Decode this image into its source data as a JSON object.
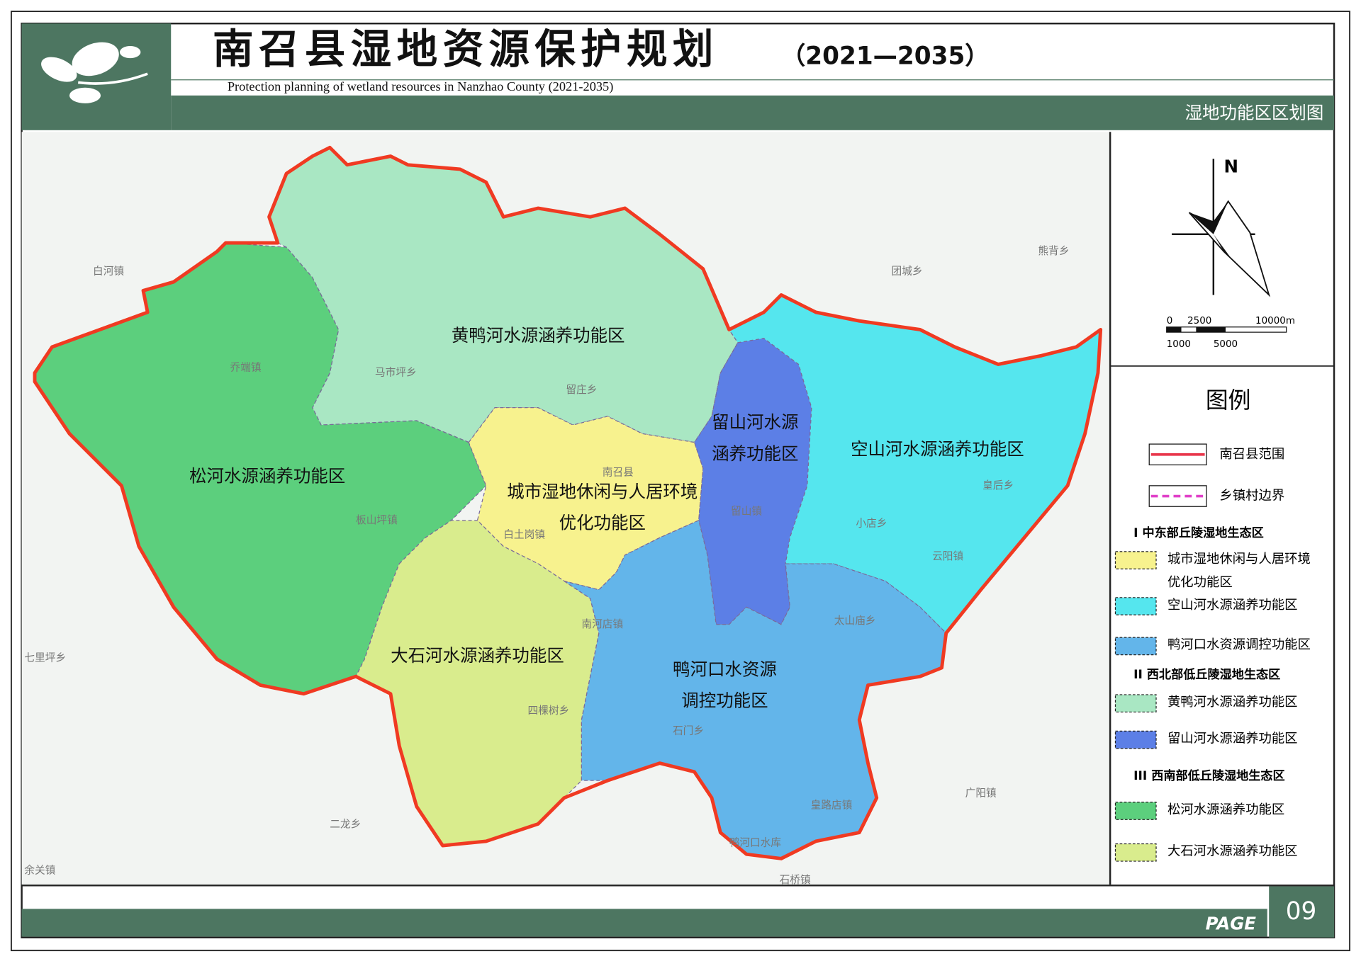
{
  "header": {
    "title": "南召县湿地资源保护规划",
    "years": "（2021—2035）",
    "subtitle": "Protection planning of wetland resources in Nanzhao County (2021-2035)",
    "section": "湿地功能区区划图"
  },
  "map": {
    "boundary_color": "#f03a22",
    "regions": [
      {
        "label": [
          "黄鸭河水源涵养功能区"
        ],
        "color": "#a9e7c3"
      },
      {
        "label": [
          "松河水源涵养功能区"
        ],
        "color": "#5ccf7d"
      },
      {
        "label": [
          "城市湿地休闲与人居环境",
          "优化功能区"
        ],
        "color": "#f7f28e"
      },
      {
        "label": [
          "留山河水源",
          "涵养功能区"
        ],
        "color": "#5c7fe6"
      },
      {
        "label": [
          "空山河水源涵养功能区"
        ],
        "color": "#55e6ee"
      },
      {
        "label": [
          "大石河水源涵养功能区"
        ],
        "color": "#d9ec8d"
      },
      {
        "label": [
          "鸭河口水资源",
          "调控功能区"
        ],
        "color": "#63b5ea"
      }
    ],
    "places": [
      "白河镇",
      "乔端镇",
      "马市坪乡",
      "留庄乡",
      "南召县",
      "板山坪镇",
      "白土岗镇",
      "留山镇",
      "小店乡",
      "云阳镇",
      "皇后乡",
      "熊背乡",
      "团城乡",
      "太山庙乡",
      "南河店镇",
      "四棵树乡",
      "石门乡",
      "皇路店镇",
      "七里坪乡",
      "二龙乡",
      "余关镇",
      "石桥镇",
      "广阳镇",
      "鸭河口水库"
    ]
  },
  "legend": {
    "north": "N",
    "scale_top": [
      "0",
      "2500",
      "10000m"
    ],
    "scale_bottom": [
      "1000",
      "5000"
    ],
    "title": "图例",
    "lines": [
      {
        "text": "南召县范围",
        "color": "#e8354a",
        "dash": false
      },
      {
        "text": "乡镇村边界",
        "color": "#e040c8",
        "dash": true
      }
    ],
    "groups": [
      {
        "title": "Ⅰ 中东部丘陵湿地生态区",
        "items": [
          {
            "text": [
              "城市湿地休闲与人居环境",
              "优化功能区"
            ],
            "color": "#f7f28e"
          },
          {
            "text": [
              "空山河水源涵养功能区"
            ],
            "color": "#55e6ee"
          },
          {
            "text": [
              "鸭河口水资源调控功能区"
            ],
            "color": "#63b5ea"
          }
        ]
      },
      {
        "title": "II 西北部低丘陵湿地生态区",
        "items": [
          {
            "text": [
              "黄鸭河水源涵养功能区"
            ],
            "color": "#a9e7c3"
          },
          {
            "text": [
              "留山河水源涵养功能区"
            ],
            "color": "#5c7fe6"
          }
        ]
      },
      {
        "title": "III 西南部低丘陵湿地生态区",
        "items": [
          {
            "text": [
              "松河水源涵养功能区"
            ],
            "color": "#5ccf7d"
          },
          {
            "text": [
              "大石河水源涵养功能区"
            ],
            "color": "#d9ec8d"
          }
        ]
      }
    ]
  },
  "footer": {
    "page_label": "PAGE",
    "page_number": "09"
  }
}
